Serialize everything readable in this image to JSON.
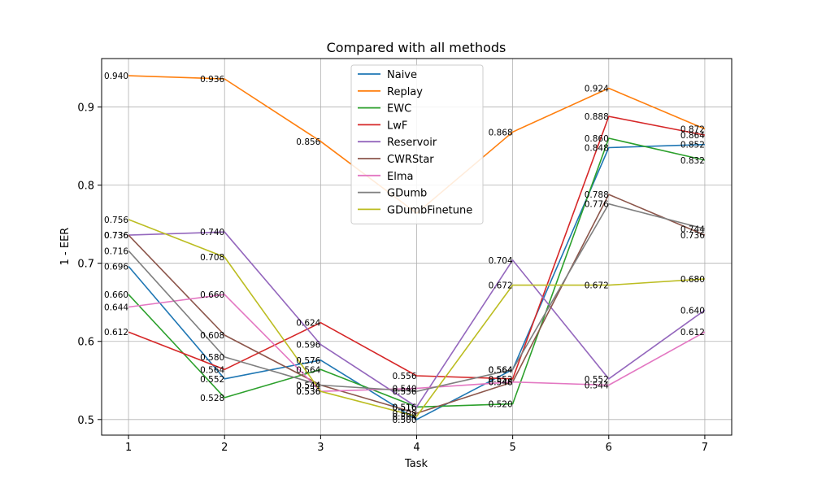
{
  "chart_data": {
    "type": "line",
    "title": "Compared with all methods",
    "xlabel": "Task",
    "ylabel": "1 - EER",
    "x": [
      1,
      2,
      3,
      4,
      5,
      6,
      7
    ],
    "xlim": [
      0.72,
      7.28
    ],
    "ylim": [
      0.48,
      0.962
    ],
    "xticks": [
      "1",
      "2",
      "3",
      "4",
      "5",
      "6",
      "7"
    ],
    "yticks": [
      "0.5",
      "0.6",
      "0.7",
      "0.8",
      "0.9"
    ],
    "ytick_values": [
      0.5,
      0.6,
      0.7,
      0.8,
      0.9
    ],
    "grid": true,
    "legend_position": "top-center",
    "series": [
      {
        "name": "Naive",
        "color": "#1f77b4",
        "values": [
          0.696,
          0.552,
          0.576,
          0.5,
          0.564,
          0.848,
          0.852
        ]
      },
      {
        "name": "Replay",
        "color": "#ff7f0e",
        "values": [
          0.94,
          0.936,
          0.856,
          0.764,
          0.868,
          0.924,
          0.872
        ]
      },
      {
        "name": "EWC",
        "color": "#2ca02c",
        "values": [
          0.66,
          0.528,
          0.564,
          0.516,
          0.52,
          0.86,
          0.832
        ]
      },
      {
        "name": "LwF",
        "color": "#d62728",
        "values": [
          0.612,
          0.564,
          0.624,
          0.556,
          0.552,
          0.888,
          0.864
        ]
      },
      {
        "name": "Reservoir",
        "color": "#9467bd",
        "values": [
          0.736,
          0.74,
          0.596,
          0.516,
          0.704,
          0.552,
          0.64
        ]
      },
      {
        "name": "CWRStar",
        "color": "#8c564b",
        "values": [
          0.736,
          0.608,
          0.544,
          0.508,
          0.548,
          0.788,
          0.736
        ]
      },
      {
        "name": "Elma",
        "color": "#e377c2",
        "values": [
          0.644,
          0.66,
          0.536,
          0.54,
          0.548,
          0.544,
          0.612
        ]
      },
      {
        "name": "GDumb",
        "color": "#7f7f7f",
        "values": [
          0.716,
          0.58,
          0.544,
          0.536,
          0.564,
          0.776,
          0.744
        ]
      },
      {
        "name": "GDumbFinetune",
        "color": "#bcbd22",
        "values": [
          0.756,
          0.708,
          0.536,
          0.504,
          0.672,
          0.672,
          0.68
        ]
      }
    ],
    "data_labels": [
      {
        "series": 0,
        "points": [
          0,
          1,
          2,
          3,
          4,
          5,
          6
        ]
      },
      {
        "series": 1,
        "points": [
          0,
          1,
          2,
          4,
          5,
          6
        ]
      },
      {
        "series": 2,
        "points": [
          0,
          1,
          2,
          3,
          4,
          5,
          6
        ]
      },
      {
        "series": 3,
        "points": [
          0,
          1,
          2,
          3,
          4,
          5,
          6
        ]
      },
      {
        "series": 4,
        "points": [
          0,
          1,
          2,
          3,
          4,
          5,
          6
        ]
      },
      {
        "series": 5,
        "points": [
          0,
          1,
          2,
          3,
          4,
          5,
          6
        ]
      },
      {
        "series": 6,
        "points": [
          0,
          1,
          2,
          3,
          4,
          5,
          6
        ]
      },
      {
        "series": 7,
        "points": [
          0,
          1,
          2,
          3,
          4,
          5,
          6
        ]
      },
      {
        "series": 8,
        "points": [
          0,
          1,
          2,
          3,
          4,
          5,
          6
        ]
      }
    ]
  }
}
